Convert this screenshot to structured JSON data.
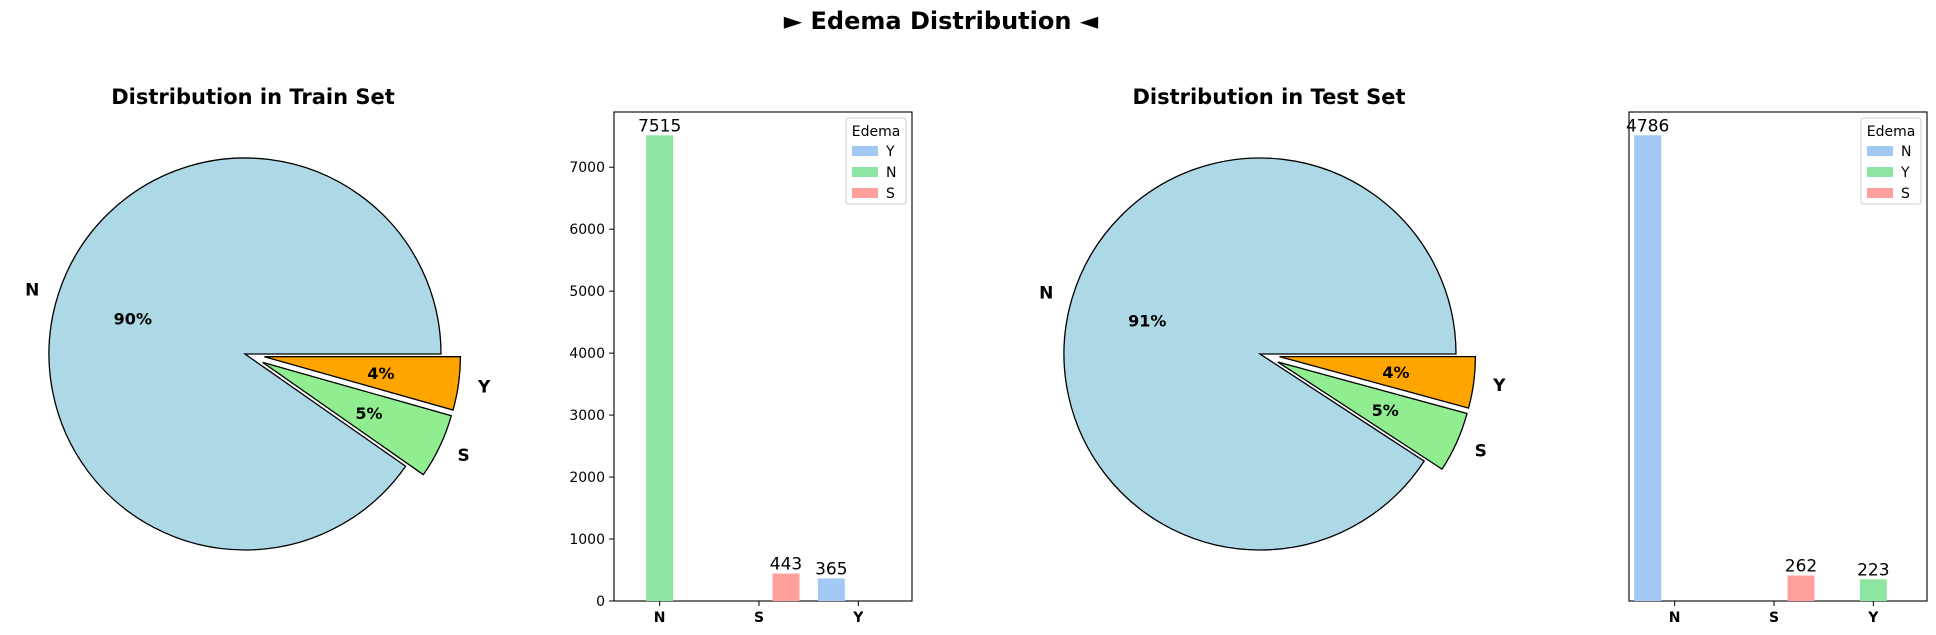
{
  "figure": {
    "title": "► Edema Distribution ◄"
  },
  "colors": {
    "pie_N": "#add8e6",
    "pie_S": "#90ee90",
    "pie_Y": "#ffa500",
    "bar_blue": "#a1c9f4",
    "bar_green": "#8de5a1",
    "bar_red": "#ff9f9b"
  },
  "chart_data": [
    {
      "type": "pie",
      "title": "Distribution in Train Set",
      "labels": [
        "N",
        "S",
        "Y"
      ],
      "values": [
        7515,
        443,
        365
      ],
      "pct_labels": [
        "90%",
        "5%",
        "4%"
      ],
      "colors": [
        "#add8e6",
        "#90ee90",
        "#ffa500"
      ],
      "exploded": [
        "S",
        "Y"
      ]
    },
    {
      "type": "bar",
      "title": "",
      "categories": [
        "N",
        "S",
        "Y"
      ],
      "legend_title": "Edema",
      "legend_entries": [
        "Y",
        "N",
        "S"
      ],
      "legend_placement": "top-right",
      "series": [
        {
          "name": "Y",
          "color": "#a1c9f4",
          "values": [
            null,
            null,
            365
          ]
        },
        {
          "name": "N",
          "color": "#8de5a1",
          "values": [
            7515,
            null,
            null
          ]
        },
        {
          "name": "S",
          "color": "#ff9f9b",
          "values": [
            null,
            443,
            null
          ]
        }
      ],
      "data_labels": [
        "7515",
        "443",
        "365"
      ],
      "ylim": [
        0,
        7891
      ],
      "yticks": [
        0,
        1000,
        2000,
        3000,
        4000,
        5000,
        6000,
        7000
      ],
      "show_yticks": true,
      "grid": false
    },
    {
      "type": "pie",
      "title": "Distribution in Test Set",
      "labels": [
        "N",
        "S",
        "Y"
      ],
      "values": [
        4786,
        262,
        223
      ],
      "pct_labels": [
        "91%",
        "5%",
        "4%"
      ],
      "colors": [
        "#add8e6",
        "#90ee90",
        "#ffa500"
      ],
      "exploded": [
        "S",
        "Y"
      ]
    },
    {
      "type": "bar",
      "title": "",
      "categories": [
        "N",
        "S",
        "Y"
      ],
      "legend_title": "Edema",
      "legend_entries": [
        "N",
        "Y",
        "S"
      ],
      "legend_placement": "top-right",
      "series": [
        {
          "name": "N",
          "color": "#a1c9f4",
          "values": [
            4786,
            null,
            null
          ]
        },
        {
          "name": "Y",
          "color": "#8de5a1",
          "values": [
            null,
            null,
            223
          ]
        },
        {
          "name": "S",
          "color": "#ff9f9b",
          "values": [
            null,
            262,
            null
          ]
        }
      ],
      "data_labels": [
        "4786",
        "262",
        "223"
      ],
      "ylim": [
        0,
        5025
      ],
      "show_yticks": false,
      "grid": false
    }
  ]
}
